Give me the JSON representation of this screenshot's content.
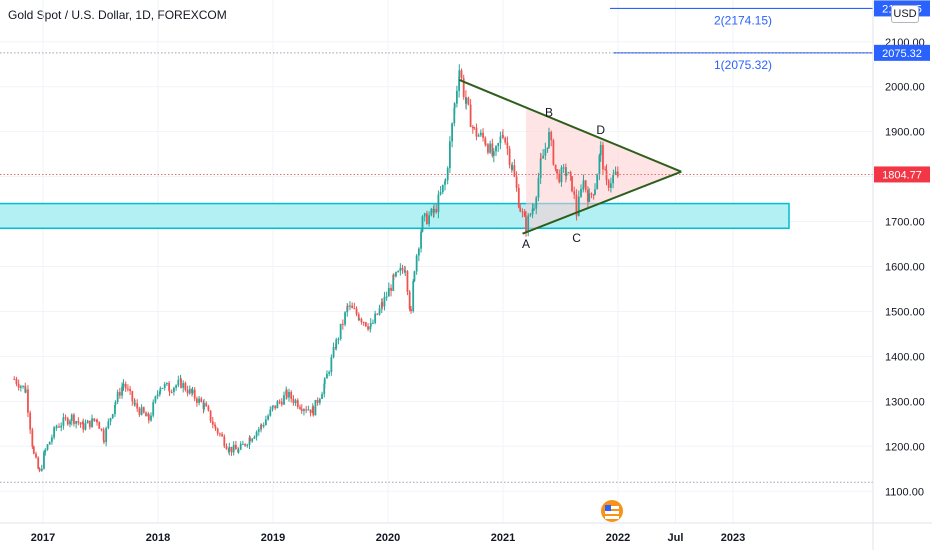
{
  "header": {
    "title": "Gold Spot / U.S. Dollar, 1D, FOREXCOM",
    "currency": "USD"
  },
  "chart_data": {
    "type": "candlestick",
    "x_ticks": [
      "2017",
      "2018",
      "2019",
      "2020",
      "2021",
      "2022",
      "Jul",
      "2023"
    ],
    "y_ticks": [
      "1100.00",
      "1200.00",
      "1300.00",
      "1400.00",
      "1500.00",
      "1600.00",
      "1700.00",
      "1800.00",
      "1900.00",
      "2000.00",
      "2100.00"
    ],
    "ylim": [
      1050,
      2250
    ],
    "price_labels": [
      {
        "text": "2174.15",
        "value": 2174.15,
        "color": "#2962ff"
      },
      {
        "text": "2075.32",
        "value": 2075.32,
        "color": "#2962ff"
      },
      {
        "text": "1804.77",
        "value": 1804.77,
        "color": "#f23645"
      }
    ],
    "fib_labels": [
      "2(2174.15)",
      "1(2075.32)"
    ],
    "pattern_points": [
      {
        "label": "A",
        "date": 2021.2,
        "price": 1677
      },
      {
        "label": "B",
        "date": 2021.4,
        "price": 1916
      },
      {
        "label": "C",
        "date": 2021.64,
        "price": 1690
      },
      {
        "label": "D",
        "date": 2021.85,
        "price": 1877
      }
    ],
    "trendlines": [
      {
        "name": "upper",
        "start": {
          "date": 2020.62,
          "price": 2015
        },
        "end": {
          "date": 2022.55,
          "price": 1811
        }
      },
      {
        "name": "lower",
        "start": {
          "date": 2021.17,
          "price": 1673
        },
        "end": {
          "date": 2022.55,
          "price": 1811
        }
      }
    ],
    "support_zone": {
      "low": 1685,
      "high": 1740
    },
    "dotted_levels": [
      2075.32,
      1804.77,
      1120
    ],
    "closes": [
      {
        "date": 2016.75,
        "price": 1350
      },
      {
        "date": 2016.85,
        "price": 1325
      },
      {
        "date": 2016.92,
        "price": 1180
      },
      {
        "date": 2016.97,
        "price": 1140
      },
      {
        "date": 2017.02,
        "price": 1190
      },
      {
        "date": 2017.12,
        "price": 1245
      },
      {
        "date": 2017.25,
        "price": 1265
      },
      {
        "date": 2017.35,
        "price": 1245
      },
      {
        "date": 2017.47,
        "price": 1260
      },
      {
        "date": 2017.53,
        "price": 1220
      },
      {
        "date": 2017.63,
        "price": 1300
      },
      {
        "date": 2017.7,
        "price": 1340
      },
      {
        "date": 2017.8,
        "price": 1290
      },
      {
        "date": 2017.92,
        "price": 1260
      },
      {
        "date": 2018.02,
        "price": 1335
      },
      {
        "date": 2018.1,
        "price": 1330
      },
      {
        "date": 2018.2,
        "price": 1340
      },
      {
        "date": 2018.3,
        "price": 1315
      },
      {
        "date": 2018.4,
        "price": 1290
      },
      {
        "date": 2018.5,
        "price": 1240
      },
      {
        "date": 2018.62,
        "price": 1195
      },
      {
        "date": 2018.7,
        "price": 1190
      },
      {
        "date": 2018.8,
        "price": 1220
      },
      {
        "date": 2018.9,
        "price": 1245
      },
      {
        "date": 2019.0,
        "price": 1285
      },
      {
        "date": 2019.12,
        "price": 1315
      },
      {
        "date": 2019.25,
        "price": 1290
      },
      {
        "date": 2019.35,
        "price": 1280
      },
      {
        "date": 2019.45,
        "price": 1340
      },
      {
        "date": 2019.55,
        "price": 1430
      },
      {
        "date": 2019.65,
        "price": 1510
      },
      {
        "date": 2019.75,
        "price": 1490
      },
      {
        "date": 2019.85,
        "price": 1465
      },
      {
        "date": 2019.95,
        "price": 1515
      },
      {
        "date": 2020.05,
        "price": 1570
      },
      {
        "date": 2020.15,
        "price": 1600
      },
      {
        "date": 2020.2,
        "price": 1490
      },
      {
        "date": 2020.23,
        "price": 1600
      },
      {
        "date": 2020.3,
        "price": 1700
      },
      {
        "date": 2020.4,
        "price": 1720
      },
      {
        "date": 2020.5,
        "price": 1790
      },
      {
        "date": 2020.58,
        "price": 1960
      },
      {
        "date": 2020.62,
        "price": 2040
      },
      {
        "date": 2020.68,
        "price": 1960
      },
      {
        "date": 2020.75,
        "price": 1900
      },
      {
        "date": 2020.85,
        "price": 1880
      },
      {
        "date": 2020.92,
        "price": 1840
      },
      {
        "date": 2021.0,
        "price": 1900
      },
      {
        "date": 2021.08,
        "price": 1820
      },
      {
        "date": 2021.15,
        "price": 1730
      },
      {
        "date": 2021.2,
        "price": 1690
      },
      {
        "date": 2021.27,
        "price": 1740
      },
      {
        "date": 2021.33,
        "price": 1830
      },
      {
        "date": 2021.4,
        "price": 1890
      },
      {
        "date": 2021.47,
        "price": 1800
      },
      {
        "date": 2021.55,
        "price": 1810
      },
      {
        "date": 2021.6,
        "price": 1780
      },
      {
        "date": 2021.64,
        "price": 1720
      },
      {
        "date": 2021.7,
        "price": 1790
      },
      {
        "date": 2021.75,
        "price": 1750
      },
      {
        "date": 2021.8,
        "price": 1780
      },
      {
        "date": 2021.85,
        "price": 1860
      },
      {
        "date": 2021.9,
        "price": 1780
      },
      {
        "date": 2021.96,
        "price": 1800
      },
      {
        "date": 2022.0,
        "price": 1805
      }
    ],
    "colors": {
      "up": "#26a69a",
      "down": "#ef5350",
      "trendline": "#2e5f1a",
      "zone_fill": "#b2f0f3",
      "zone_border": "#00bcd4",
      "triangle_fill": "#ffcdd2",
      "fib": "#2962ff",
      "grid": "#f0f3fa",
      "axis_text": "#131722"
    }
  }
}
